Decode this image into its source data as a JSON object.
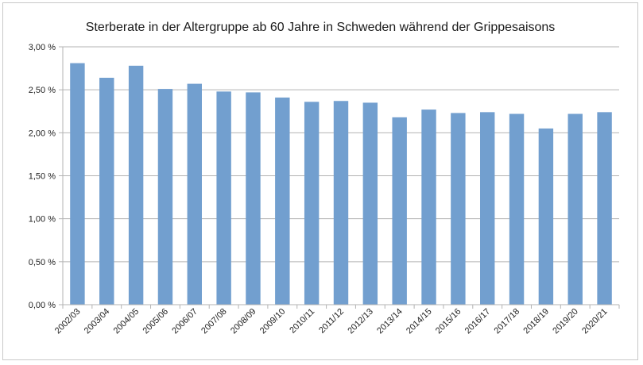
{
  "chart_data": {
    "type": "bar",
    "title": "Sterberate in der Altergruppe ab 60 Jahre in Schweden während der Grippesaisons",
    "xlabel": "",
    "ylabel": "",
    "ylim": [
      0,
      3.0
    ],
    "ytick_values": [
      0,
      0.5,
      1.0,
      1.5,
      2.0,
      2.5,
      3.0
    ],
    "ytick_labels": [
      "0,00 %",
      "0,50 %",
      "1,00 %",
      "1,50 %",
      "2,00 %",
      "2,50 %",
      "3,00 %"
    ],
    "grid": true,
    "legend": "none",
    "bar_color": "#729fcf",
    "categories": [
      "2002/03",
      "2003/04",
      "2004/05",
      "2005/06",
      "2006/07",
      "2007/08",
      "2008/09",
      "2009/10",
      "2010/11",
      "2011/12",
      "2012/13",
      "2013/14",
      "2014/15",
      "2015/16",
      "2016/17",
      "2017/18",
      "2018/19",
      "2019/20",
      "2020/21"
    ],
    "values": [
      2.81,
      2.64,
      2.78,
      2.51,
      2.57,
      2.48,
      2.47,
      2.41,
      2.36,
      2.37,
      2.35,
      2.18,
      2.27,
      2.23,
      2.24,
      2.22,
      2.05,
      2.22,
      2.24
    ]
  }
}
